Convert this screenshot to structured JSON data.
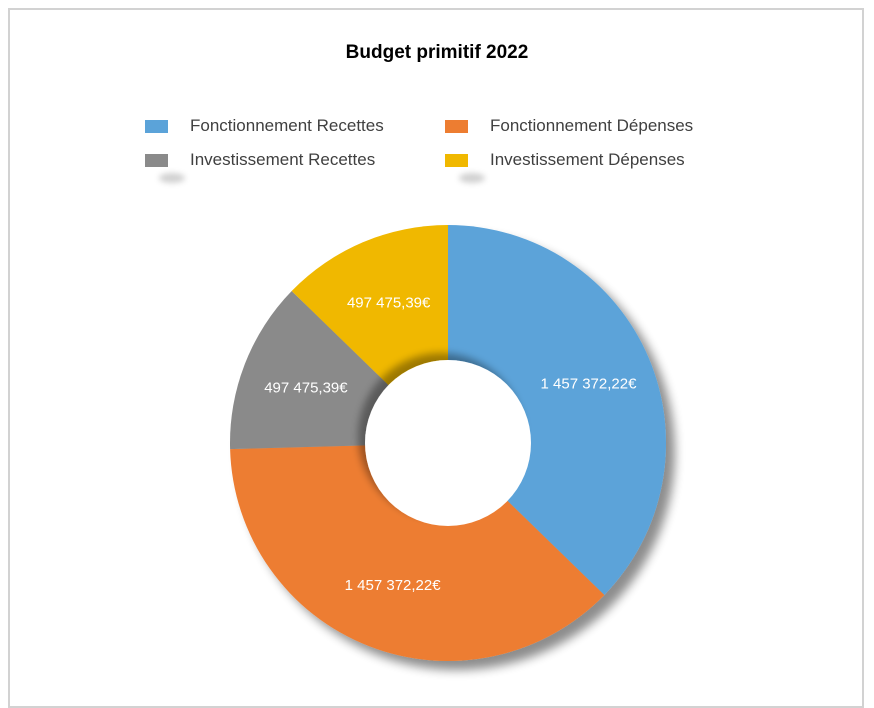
{
  "chart_data": {
    "type": "pie",
    "variant": "donut",
    "title": "Budget primitif 2022",
    "legend_position": "top",
    "categories": [
      "Fonctionnement Recettes",
      "Fonctionnement Dépenses",
      "Investissement Recettes",
      "Investissement Dépenses"
    ],
    "values": [
      1457372.22,
      1457372.22,
      497475.39,
      497475.39
    ],
    "labels": [
      "1 457 372,22€",
      "1 457 372,22€",
      "497 475,39€",
      "497 475,39€"
    ],
    "colors": [
      "#5ba3d9",
      "#ed7d31",
      "#8a8a8a",
      "#f0b800"
    ]
  }
}
